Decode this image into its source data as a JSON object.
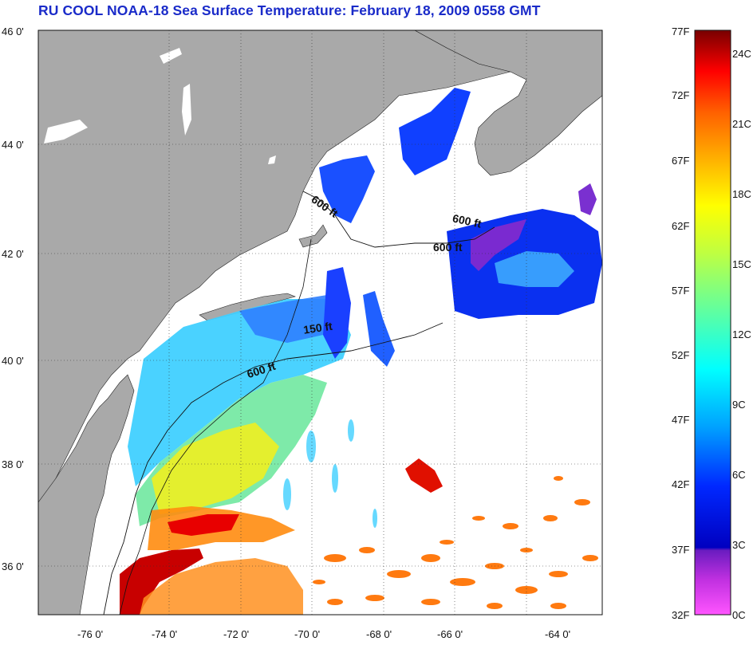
{
  "title": "RU COOL  NOAA-18  Sea Surface Temperature:  February 18, 2009 0558 GMT",
  "lat_labels": [
    "46 0'",
    "44 0'",
    "42 0'",
    "40 0'",
    "38 0'",
    "36 0'"
  ],
  "lon_labels": [
    "-76 0'",
    "-74 0'",
    "-72 0'",
    "-70 0'",
    "-68 0'",
    "-66 0'",
    "-64 0'"
  ],
  "contour_labels": [
    {
      "text": "600 ft"
    },
    {
      "text": "600 ft"
    },
    {
      "text": "600 ft"
    },
    {
      "text": "150 ft"
    },
    {
      "text": "600 ft"
    }
  ],
  "colorbar": {
    "fahrenheit_labels": [
      "77F",
      "72F",
      "67F",
      "62F",
      "57F",
      "52F",
      "47F",
      "42F",
      "37F",
      "32F"
    ],
    "celsius_labels": [
      "24C",
      "21C",
      "18C",
      "15C",
      "12C",
      "9C",
      "6C",
      "3C",
      "0C"
    ],
    "colors": {
      "hot": "#7d0000",
      "red": "#ff0000",
      "orange": "#ff8c00",
      "yellow": "#ffff00",
      "green": "#80ff60",
      "cyan": "#00ffff",
      "blue": "#0040ff",
      "navy": "#0000b0",
      "purple": "#8000c0",
      "magenta": "#ff40ff"
    }
  },
  "land_color": "#a9a9a9"
}
